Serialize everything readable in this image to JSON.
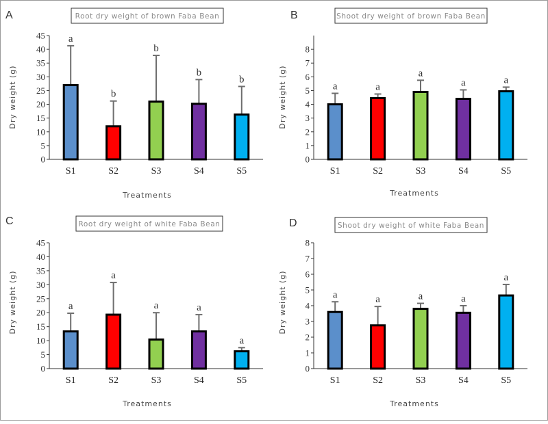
{
  "colors": {
    "bar_colors": [
      "#5b8fcb",
      "#ff0000",
      "#92d050",
      "#7030a0",
      "#00b0f0"
    ],
    "bar_outline": "#000000",
    "error_bar": "#6e6e6e"
  },
  "chart_data": [
    {
      "panel": "A",
      "type": "bar",
      "title": "Root dry weight of brown Faba Bean",
      "xlabel": "Treatments",
      "ylabel": "Dry weight (g)",
      "categories": [
        "S1",
        "S2",
        "S3",
        "S4",
        "S5"
      ],
      "values": [
        27,
        12,
        21,
        20.2,
        16.3
      ],
      "error_upper": [
        41.3,
        21.2,
        37.8,
        29,
        26.5
      ],
      "significance": [
        "a",
        "b",
        "b",
        "b",
        "b"
      ],
      "ylim": [
        0,
        45
      ],
      "yticks": [
        0,
        5,
        10,
        15,
        20,
        25,
        30,
        35,
        40,
        45
      ]
    },
    {
      "panel": "B",
      "type": "bar",
      "title": "Shoot dry weight of brown Faba Bean",
      "xlabel": "Treatments",
      "ylabel": "Dry weight (g)",
      "categories": [
        "S1",
        "S2",
        "S3",
        "S4",
        "S5"
      ],
      "values": [
        4,
        4.45,
        4.9,
        4.4,
        4.95
      ],
      "error_upper": [
        4.8,
        4.75,
        5.75,
        5.05,
        5.25
      ],
      "significance": [
        "a",
        "a",
        "a",
        "a",
        "a"
      ],
      "ylim": [
        0,
        9
      ],
      "yticks": [
        0,
        1,
        2,
        3,
        4,
        5,
        6,
        7,
        8
      ]
    },
    {
      "panel": "C",
      "type": "bar",
      "title": "Root dry weight of white Faba Bean",
      "xlabel": "Treatments",
      "ylabel": "Dry weight (g)",
      "categories": [
        "S1",
        "S2",
        "S3",
        "S4",
        "S5"
      ],
      "values": [
        13.3,
        19.3,
        10.4,
        13.3,
        6.2
      ],
      "error_upper": [
        19.8,
        30.8,
        20,
        19.3,
        7.5
      ],
      "significance": [
        "a",
        "a",
        "a",
        "a",
        "a"
      ],
      "ylim": [
        0,
        45
      ],
      "yticks": [
        0,
        5,
        10,
        15,
        20,
        25,
        30,
        35,
        40,
        45
      ]
    },
    {
      "panel": "D",
      "type": "bar",
      "title": "Shoot dry weight of white Faba Bean",
      "xlabel": "Treatments",
      "ylabel": "Dry weight (g)",
      "categories": [
        "S1",
        "S2",
        "S3",
        "S4",
        "S5"
      ],
      "values": [
        3.6,
        2.75,
        3.8,
        3.55,
        4.65
      ],
      "error_upper": [
        4.25,
        3.95,
        4.15,
        4.0,
        5.35
      ],
      "significance": [
        "a",
        "a",
        "a",
        "a",
        "a"
      ],
      "ylim": [
        0,
        8
      ],
      "yticks": [
        0,
        1,
        2,
        3,
        4,
        5,
        6,
        7,
        8
      ]
    }
  ]
}
